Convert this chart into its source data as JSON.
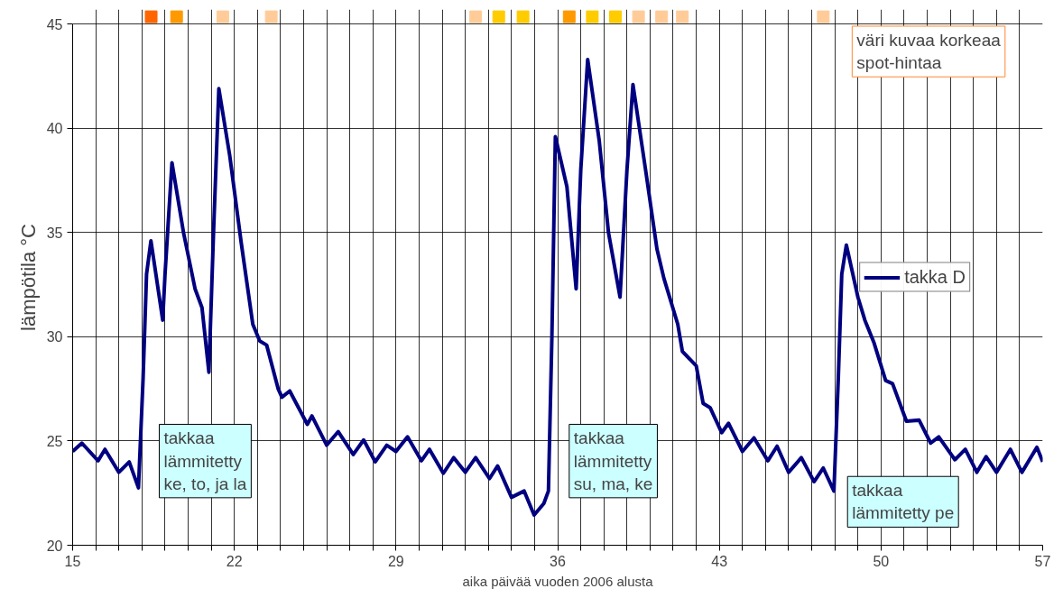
{
  "chart_data": {
    "type": "line",
    "xlabel": "aika päivää vuoden 2006 alusta",
    "ylabel": "lämpötila °C",
    "xlim": [
      15,
      57
    ],
    "ylim": [
      20,
      45.7
    ],
    "xticks": [
      15,
      {
        "value": 16,
        "label": null
      },
      {
        "value": 17,
        "label": null
      },
      {
        "value": 18,
        "label": null
      },
      {
        "value": 19,
        "label": null
      },
      {
        "value": 20,
        "label": null
      },
      {
        "value": 21,
        "label": null
      },
      22,
      {
        "value": 23,
        "label": null
      },
      {
        "value": 24,
        "label": null
      },
      {
        "value": 25,
        "label": null
      },
      {
        "value": 26,
        "label": null
      },
      {
        "value": 27,
        "label": null
      },
      {
        "value": 28,
        "label": null
      },
      29,
      {
        "value": 30,
        "label": null
      },
      {
        "value": 31,
        "label": null
      },
      {
        "value": 32,
        "label": null
      },
      {
        "value": 33,
        "label": null
      },
      {
        "value": 34,
        "label": null
      },
      {
        "value": 35,
        "label": null
      },
      36,
      {
        "value": 37,
        "label": null
      },
      {
        "value": 38,
        "label": null
      },
      {
        "value": 39,
        "label": null
      },
      {
        "value": 40,
        "label": null
      },
      {
        "value": 41,
        "label": null
      },
      {
        "value": 42,
        "label": null
      },
      43,
      {
        "value": 44,
        "label": null
      },
      {
        "value": 45,
        "label": null
      },
      {
        "value": 46,
        "label": null
      },
      {
        "value": 47,
        "label": null
      },
      {
        "value": 48,
        "label": null
      },
      {
        "value": 49,
        "label": null
      },
      50,
      {
        "value": 51,
        "label": null
      },
      {
        "value": 52,
        "label": null
      },
      {
        "value": 53,
        "label": null
      },
      {
        "value": 54,
        "label": null
      },
      {
        "value": 55,
        "label": null
      },
      {
        "value": 56,
        "label": null
      },
      57
    ],
    "yticks": [
      20,
      25,
      30,
      35,
      40,
      45
    ],
    "grid": true,
    "legend": "right",
    "line_style": "solid",
    "series": [
      {
        "name": "takka D",
        "color": "#000080",
        "marker": "none",
        "x": [
          15,
          15.4,
          16.1,
          16.4,
          17.0,
          17.45,
          17.85,
          18.05,
          18.2,
          18.39,
          18.9,
          19.0,
          19.3,
          19.8,
          20.3,
          20.6,
          20.9,
          21.1,
          21.33,
          21.8,
          22.3,
          22.8,
          23.1,
          23.4,
          23.9,
          24.06,
          24.4,
          25.16,
          25.36,
          26.0,
          26.5,
          27.15,
          27.6,
          28.1,
          28.6,
          29.0,
          29.5,
          30.1,
          30.45,
          31.05,
          31.5,
          32.0,
          32.45,
          33.05,
          33.4,
          34.0,
          34.55,
          34.98,
          35.4,
          35.6,
          35.75,
          35.9,
          36.4,
          36.8,
          37.0,
          37.3,
          37.8,
          38.2,
          38.7,
          39.0,
          39.26,
          39.8,
          40.3,
          40.6,
          41.2,
          41.4,
          42.0,
          42.3,
          42.6,
          43.1,
          43.4,
          44.0,
          44.5,
          45.1,
          45.5,
          46.0,
          46.55,
          47.1,
          47.5,
          47.96,
          48.15,
          48.3,
          48.5,
          49.0,
          49.3,
          49.7,
          50.2,
          50.5,
          51.1,
          51.65,
          52.15,
          52.5,
          53.2,
          53.65,
          54.15,
          54.55,
          55.0,
          55.6,
          56.1,
          56.75,
          57.0
        ],
        "values": [
          24.5,
          24.9,
          24.05,
          24.6,
          23.5,
          24.0,
          22.75,
          28,
          33,
          34.6,
          30.8,
          33,
          38.35,
          35,
          32.3,
          31.4,
          28.3,
          35,
          41.9,
          38.7,
          34.5,
          30.6,
          29.8,
          29.6,
          27.5,
          27.1,
          27.4,
          25.8,
          26.2,
          24.8,
          25.45,
          24.35,
          25.05,
          24.0,
          24.8,
          24.5,
          25.2,
          24.05,
          24.6,
          23.45,
          24.2,
          23.5,
          24.2,
          23.2,
          23.8,
          22.3,
          22.6,
          21.45,
          22.0,
          22.6,
          30,
          39.6,
          37.2,
          32.3,
          38,
          43.3,
          39.4,
          35.0,
          31.9,
          38,
          42.1,
          38.05,
          34.2,
          32.8,
          30.6,
          29.3,
          28.6,
          26.8,
          26.6,
          25.4,
          25.85,
          24.5,
          25.15,
          24.05,
          24.75,
          23.5,
          24.2,
          23.05,
          23.7,
          22.6,
          28,
          33,
          34.4,
          31.9,
          30.8,
          29.7,
          27.9,
          27.75,
          25.95,
          26.0,
          24.9,
          25.2,
          24.1,
          24.6,
          23.5,
          24.25,
          23.5,
          24.6,
          23.5,
          24.7,
          24.0
        ]
      },
      {
        "type": "scatter",
        "marker": "square",
        "x": [
          18.4,
          19.5,
          21.5,
          23.6,
          32.45,
          33.45,
          34.5,
          36.5,
          37.5,
          38.5,
          39.5,
          40.5,
          41.4,
          47.5
        ],
        "values": [
          45.35,
          45.35,
          45.35,
          45.35,
          45.35,
          45.35,
          45.35,
          45.35,
          45.35,
          45.35,
          45.35,
          45.35,
          45.35,
          45.35
        ],
        "colors": [
          "#ff6600",
          "#ff9900",
          "#ffcc99",
          "#ffcc99",
          "#ffcc99",
          "#ffcc00",
          "#ffcc00",
          "#ff9900",
          "#ffcc00",
          "#ffcc00",
          "#ffcc99",
          "#ffcc99",
          "#ffcc99",
          "#ffcc99"
        ]
      }
    ],
    "annotations": [
      "väri kuvaa korkeaa\nspot-hintaa",
      "takkaa\nlämmitetty\nke, to, ja la",
      "takkaa\nlämmitetty\nsu, ma, ke",
      "takkaa\nlämmitetty pe"
    ]
  }
}
